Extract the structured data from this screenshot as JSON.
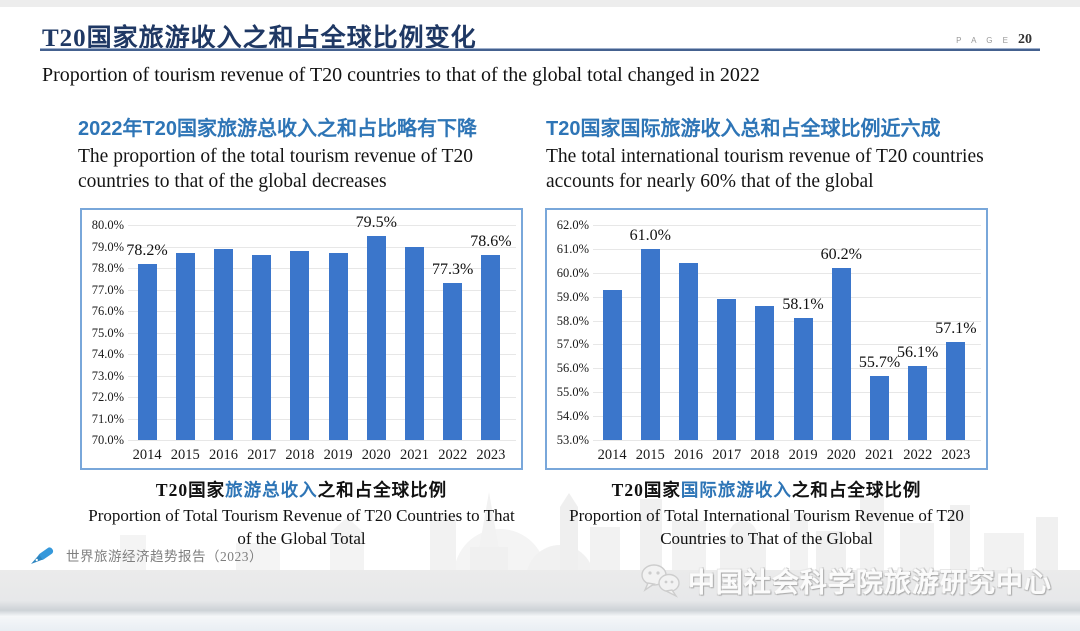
{
  "page": {
    "title_cn": "T20国家旅游收入之和占全球比例变化",
    "page_label": "P A G E",
    "page_number": "20",
    "subtitle_en": "Proportion of tourism revenue of T20 countries to that of the global total changed in 2022"
  },
  "sections": {
    "left": {
      "heading_cn": "2022年T20国家旅游总收入之和占比略有下降",
      "heading_en": "The proportion of the total tourism revenue of T20 countries to that of the global decreases",
      "caption_cn_prefix": "T20国家",
      "caption_cn_highlight": "旅游总收入",
      "caption_cn_suffix": "之和占全球比例",
      "caption_en": "Proportion of Total Tourism Revenue of T20 Countries to That of the Global Total"
    },
    "right": {
      "heading_cn": "T20国家国际旅游收入总和占全球比例近六成",
      "heading_en": "The total international tourism revenue of T20 countries accounts for nearly 60% that of the global",
      "caption_cn_prefix": "T20国家",
      "caption_cn_highlight": "国际旅游收入",
      "caption_cn_suffix": "之和占全球比例",
      "caption_en": "Proportion of Total International Tourism Revenue of T20 Countries to That of the Global"
    }
  },
  "chart_data": [
    {
      "type": "bar",
      "title": "T20国家旅游总收入之和占全球比例",
      "categories": [
        "2014",
        "2015",
        "2016",
        "2017",
        "2018",
        "2019",
        "2020",
        "2021",
        "2022",
        "2023"
      ],
      "values": [
        78.2,
        78.7,
        78.9,
        78.6,
        78.8,
        78.7,
        79.5,
        79.0,
        77.3,
        78.6
      ],
      "data_labels": {
        "2014": "78.2%",
        "2020": "79.5%",
        "2022": "77.3%",
        "2023": "78.6%"
      },
      "ylim": [
        70,
        80
      ],
      "ytick_step": 1,
      "ytick_format": "percent_1dp",
      "grid": true,
      "legend": "none",
      "xlabel": "",
      "ylabel": "",
      "bar_color": "#3B76CB"
    },
    {
      "type": "bar",
      "title": "T20国家国际旅游收入之和占全球比例",
      "categories": [
        "2014",
        "2015",
        "2016",
        "2017",
        "2018",
        "2019",
        "2020",
        "2021",
        "2022",
        "2023"
      ],
      "values": [
        59.3,
        61.0,
        60.4,
        58.9,
        58.6,
        58.1,
        60.2,
        55.7,
        56.1,
        57.1
      ],
      "data_labels": {
        "2015": "61.0%",
        "2019": "58.1%",
        "2020": "60.2%",
        "2021": "55.7%",
        "2022": "56.1%",
        "2023": "57.1%"
      },
      "ylim": [
        53,
        62
      ],
      "ytick_step": 1,
      "ytick_format": "percent_1dp",
      "grid": true,
      "legend": "none",
      "xlabel": "",
      "ylabel": "",
      "bar_color": "#3B76CB"
    }
  ],
  "footer": {
    "source_text": "世界旅游经济趋势报告（2023）",
    "logo_text": "中国社会科学院旅游研究中心"
  },
  "colors": {
    "title_navy": "#1F3864",
    "rule_blue": "#44618F",
    "heading_blue": "#2E75B6",
    "bar_blue": "#3B76CB",
    "chart_border": "#79A7DA",
    "source_gray": "#7f7f7f",
    "pen_blue": "#3598DB"
  },
  "icons": {
    "pen": "pen-nib-icon",
    "logo": "chat-bubbles-logo-icon"
  }
}
